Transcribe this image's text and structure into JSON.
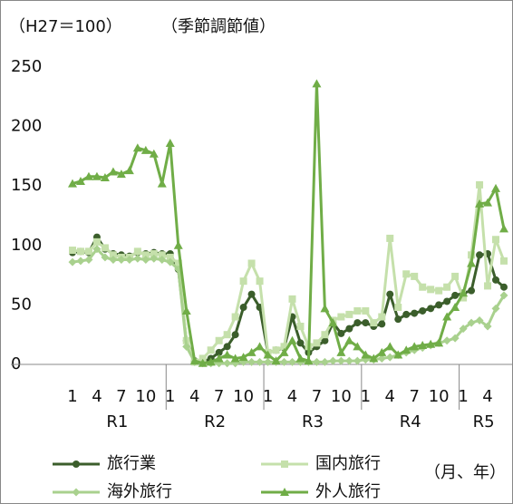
{
  "chart_data": {
    "type": "line",
    "unit_label": "（H27＝100）",
    "note": "（季節調節値）",
    "x_label": "（月、年）",
    "categories": [
      "1",
      null,
      null,
      "4",
      null,
      null,
      "7",
      null,
      null,
      "10",
      null,
      null,
      "1",
      null,
      null,
      "4",
      null,
      null,
      "7",
      null,
      null,
      "10",
      null,
      null,
      "1",
      null,
      null,
      "4",
      null,
      null,
      "7",
      null,
      null,
      "10",
      null,
      null,
      "1",
      null,
      null,
      "4",
      null,
      null,
      "7",
      null,
      null,
      "10",
      null,
      null,
      "1",
      null,
      null,
      "4",
      null,
      null
    ],
    "category_groups": [
      "R1",
      "R2",
      "R3",
      "R4",
      "R5"
    ],
    "ylim": [
      0,
      250
    ],
    "yticks": [
      0,
      50,
      100,
      150,
      200,
      250
    ],
    "grid": false,
    "series": [
      {
        "name": "旅行業",
        "color": "#3b5e2b",
        "marker": "circle",
        "values": [
          94,
          95,
          94,
          107,
          97,
          93,
          92,
          91,
          94,
          93,
          94,
          93,
          93,
          80,
          20,
          3,
          2,
          5,
          10,
          15,
          25,
          48,
          59,
          48,
          10,
          12,
          14,
          40,
          18,
          10,
          15,
          20,
          35,
          26,
          30,
          35,
          35,
          32,
          34,
          59,
          38,
          42,
          43,
          45,
          47,
          50,
          53,
          58,
          60,
          62,
          92,
          93,
          71,
          65
        ]
      },
      {
        "name": "国内旅行",
        "color": "#c5e0ab",
        "marker": "square",
        "values": [
          96,
          95,
          95,
          103,
          98,
          92,
          90,
          90,
          95,
          92,
          93,
          92,
          90,
          85,
          20,
          2,
          5,
          12,
          20,
          25,
          40,
          70,
          85,
          70,
          10,
          12,
          15,
          55,
          32,
          15,
          18,
          25,
          37,
          40,
          42,
          45,
          45,
          35,
          40,
          106,
          48,
          76,
          74,
          65,
          63,
          62,
          65,
          74,
          56,
          92,
          151,
          66,
          105,
          87
        ]
      },
      {
        "name": "海外旅行",
        "color": "#a9d18e",
        "marker": "diamond",
        "values": [
          86,
          87,
          88,
          97,
          90,
          88,
          88,
          88,
          89,
          88,
          89,
          88,
          86,
          80,
          15,
          2,
          1,
          1,
          1,
          1,
          1,
          2,
          2,
          2,
          2,
          2,
          2,
          2,
          2,
          2,
          2,
          2,
          3,
          3,
          3,
          3,
          4,
          4,
          5,
          6,
          8,
          10,
          12,
          14,
          16,
          18,
          20,
          22,
          30,
          35,
          37,
          32,
          47,
          58
        ]
      },
      {
        "name": "外人旅行",
        "color": "#70ad47",
        "marker": "triangle",
        "values": [
          152,
          154,
          158,
          158,
          157,
          162,
          160,
          163,
          182,
          180,
          177,
          152,
          186,
          100,
          45,
          3,
          1,
          2,
          5,
          8,
          5,
          6,
          10,
          15,
          8,
          3,
          10,
          20,
          5,
          3,
          236,
          47,
          35,
          10,
          20,
          15,
          8,
          5,
          10,
          15,
          8,
          12,
          15,
          16,
          17,
          18,
          40,
          48,
          60,
          85,
          135,
          136,
          148,
          114
        ]
      }
    ]
  }
}
